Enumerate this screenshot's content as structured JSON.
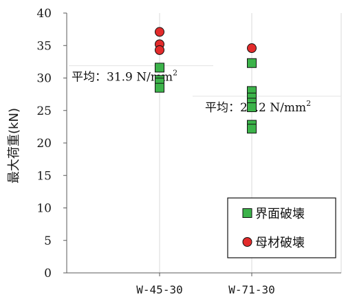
{
  "chart_data": {
    "type": "scatter",
    "ylabel": "最大荷重(kN)",
    "ylim": [
      0,
      40
    ],
    "ytick_step": 5,
    "categories": [
      "W-45-30",
      "W-71-30"
    ],
    "grid": "vertical",
    "legend_position": "bottom-right",
    "series": [
      {
        "name": "界面破壊",
        "marker": "square",
        "color": "#3cb34a",
        "points": [
          {
            "category": "W-45-30",
            "y": 31.6
          },
          {
            "category": "W-45-30",
            "y": 29.7
          },
          {
            "category": "W-45-30",
            "y": 29.3
          },
          {
            "category": "W-45-30",
            "y": 28.5
          },
          {
            "category": "W-71-30",
            "y": 32.3
          },
          {
            "category": "W-71-30",
            "y": 28.0
          },
          {
            "category": "W-71-30",
            "y": 27.0
          },
          {
            "category": "W-71-30",
            "y": 26.2
          },
          {
            "category": "W-71-30",
            "y": 25.5
          },
          {
            "category": "W-71-30",
            "y": 22.8
          },
          {
            "category": "W-71-30",
            "y": 22.2
          }
        ]
      },
      {
        "name": "母材破壊",
        "marker": "circle",
        "color": "#e32b2b",
        "points": [
          {
            "category": "W-45-30",
            "y": 37.1
          },
          {
            "category": "W-45-30",
            "y": 35.2
          },
          {
            "category": "W-45-30",
            "y": 34.3
          },
          {
            "category": "W-71-30",
            "y": 34.6
          }
        ]
      }
    ],
    "annotations": [
      {
        "category": "W-45-30",
        "y": 31.9,
        "label": "平均：31.9 N/mm",
        "sup": "2"
      },
      {
        "category": "W-71-30",
        "y": 27.2,
        "label": "平均：27.2 N/mm",
        "sup": "2"
      }
    ]
  }
}
